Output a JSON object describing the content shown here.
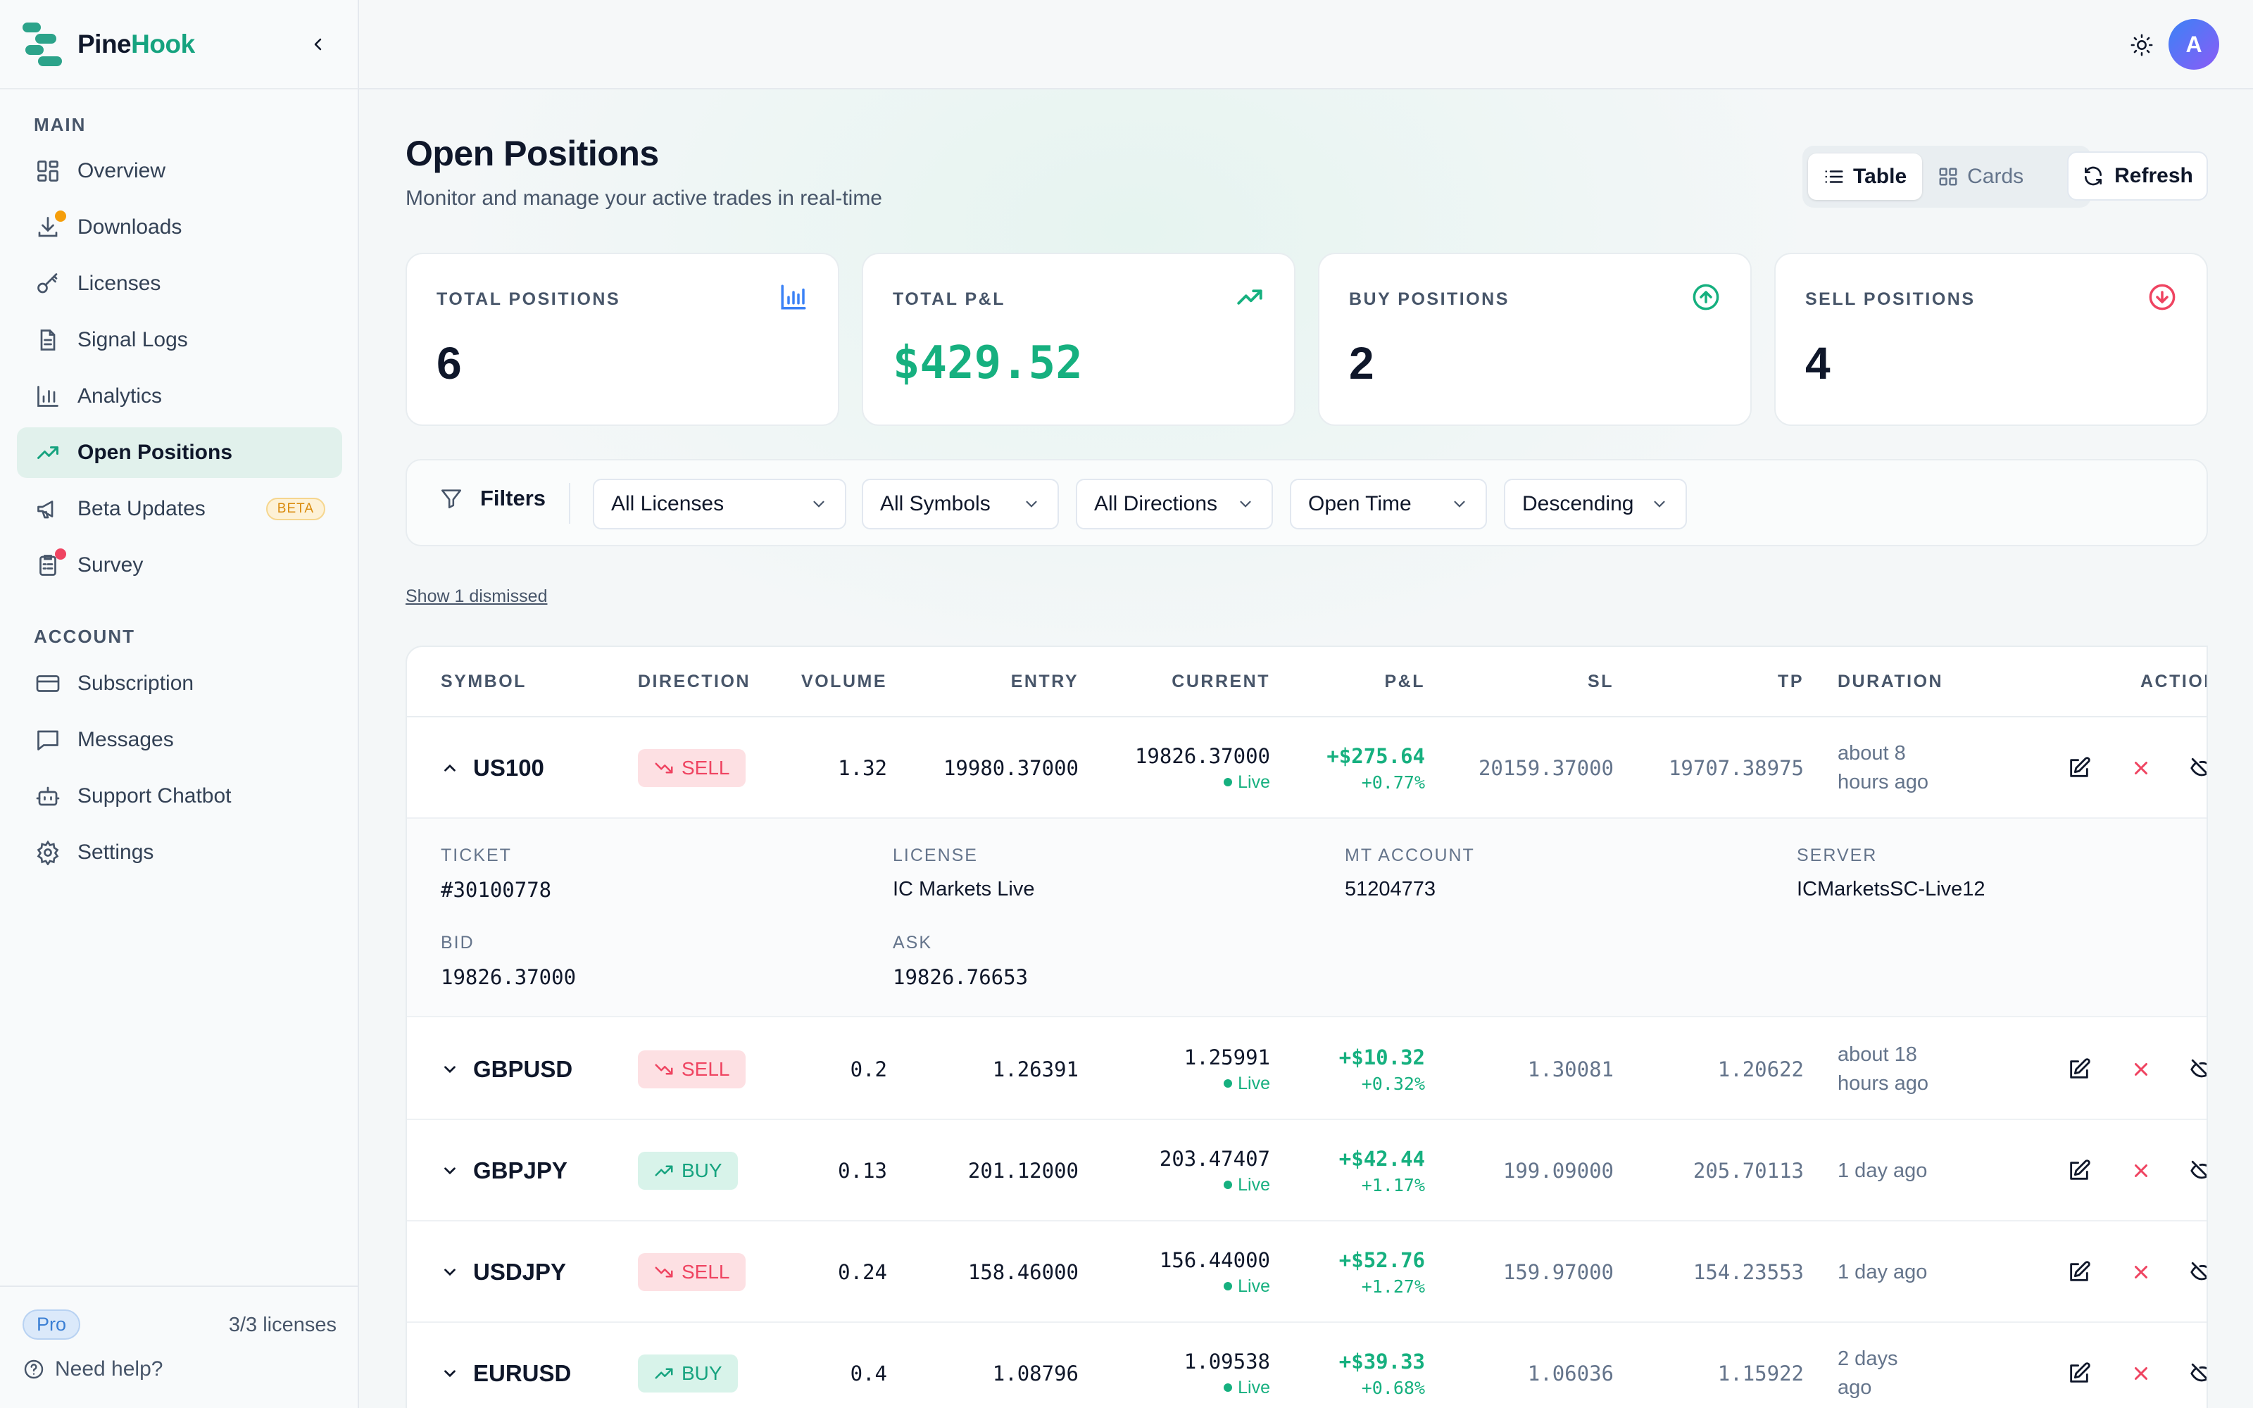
{
  "brand": {
    "name_a": "Pine",
    "name_b": "Hook"
  },
  "sidebar": {
    "section_main": "MAIN",
    "section_account": "ACCOUNT",
    "items": [
      {
        "label": "Overview",
        "icon": "grid-icon"
      },
      {
        "label": "Downloads",
        "icon": "download-icon"
      },
      {
        "label": "Licenses",
        "icon": "key-icon"
      },
      {
        "label": "Signal Logs",
        "icon": "file-text-icon"
      },
      {
        "label": "Analytics",
        "icon": "bar-chart-icon"
      },
      {
        "label": "Open Positions",
        "icon": "trending-up-icon"
      },
      {
        "label": "Beta Updates",
        "icon": "megaphone-icon",
        "badge": "BETA"
      },
      {
        "label": "Survey",
        "icon": "clipboard-icon"
      }
    ],
    "account_items": [
      {
        "label": "Subscription",
        "icon": "credit-card-icon"
      },
      {
        "label": "Messages",
        "icon": "message-icon"
      },
      {
        "label": "Support Chatbot",
        "icon": "bot-icon"
      },
      {
        "label": "Settings",
        "icon": "gear-icon"
      }
    ],
    "plan": "Pro",
    "license_count": "3/3 licenses",
    "help": "Need help?"
  },
  "topbar": {
    "avatar_initial": "A"
  },
  "page": {
    "title": "Open Positions",
    "subtitle": "Monitor and manage your active trades in real-time",
    "view_table": "Table",
    "view_cards": "Cards",
    "refresh": "Refresh"
  },
  "stats": [
    {
      "label": "TOTAL POSITIONS",
      "value": "6"
    },
    {
      "label": "TOTAL P&L",
      "value": "$429.52"
    },
    {
      "label": "BUY POSITIONS",
      "value": "2"
    },
    {
      "label": "SELL POSITIONS",
      "value": "4"
    }
  ],
  "filters": {
    "label": "Filters",
    "license": "All Licenses",
    "symbol": "All Symbols",
    "direction": "All Directions",
    "sort_by": "Open Time",
    "order": "Descending"
  },
  "show_dismissed": "Show 1 dismissed",
  "table": {
    "headers": {
      "symbol": "SYMBOL",
      "direction": "DIRECTION",
      "volume": "VOLUME",
      "entry": "ENTRY",
      "current": "CURRENT",
      "pnl": "P&L",
      "sl": "SL",
      "tp": "TP",
      "duration": "DURATION",
      "actions": "ACTIONS"
    },
    "live_label": "Live",
    "rows": [
      {
        "symbol": "US100",
        "direction": "SELL",
        "volume": "1.32",
        "entry": "19980.37000",
        "current": "19826.37000",
        "pnl": "+$275.64",
        "pnl_pct": "+0.77%",
        "sl": "20159.37000",
        "tp": "19707.38975",
        "duration_1": "about 8",
        "duration_2": "hours ago"
      },
      {
        "symbol": "GBPUSD",
        "direction": "SELL",
        "volume": "0.2",
        "entry": "1.26391",
        "current": "1.25991",
        "pnl": "+$10.32",
        "pnl_pct": "+0.32%",
        "sl": "1.30081",
        "tp": "1.20622",
        "duration_1": "about 18",
        "duration_2": "hours ago"
      },
      {
        "symbol": "GBPJPY",
        "direction": "BUY",
        "volume": "0.13",
        "entry": "201.12000",
        "current": "203.47407",
        "pnl": "+$42.44",
        "pnl_pct": "+1.17%",
        "sl": "199.09000",
        "tp": "205.70113",
        "duration_1": "1 day ago",
        "duration_2": ""
      },
      {
        "symbol": "USDJPY",
        "direction": "SELL",
        "volume": "0.24",
        "entry": "158.46000",
        "current": "156.44000",
        "pnl": "+$52.76",
        "pnl_pct": "+1.27%",
        "sl": "159.97000",
        "tp": "154.23553",
        "duration_1": "1 day ago",
        "duration_2": ""
      },
      {
        "symbol": "EURUSD",
        "direction": "BUY",
        "volume": "0.4",
        "entry": "1.08796",
        "current": "1.09538",
        "pnl": "+$39.33",
        "pnl_pct": "+0.68%",
        "sl": "1.06036",
        "tp": "1.15922",
        "duration_1": "2 days",
        "duration_2": "ago"
      }
    ],
    "detail": {
      "ticket_label": "TICKET",
      "ticket": "#30100778",
      "license_label": "LICENSE",
      "license": "IC Markets Live",
      "mt_label": "MT ACCOUNT",
      "mt": "51204773",
      "server_label": "SERVER",
      "server": "ICMarketsSC-Live12",
      "bid_label": "BID",
      "bid": "19826.37000",
      "ask_label": "ASK",
      "ask": "19826.76653"
    }
  },
  "colors": {
    "accent": "#16a37f",
    "sell": "#ef4461",
    "buy": "#16a37f",
    "profit": "#16b07f"
  }
}
